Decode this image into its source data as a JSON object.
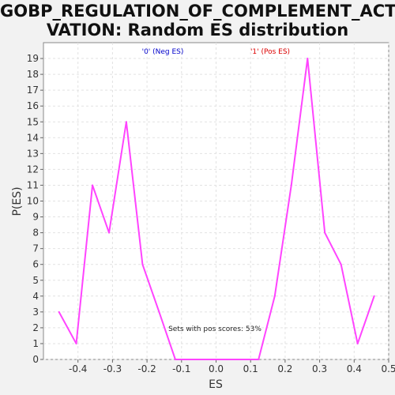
{
  "chart_data": {
    "type": "line",
    "title_line1": "GOBP_REGULATION_OF_COMPLEMENT_ACTI",
    "title_line2": "VATION: Random ES distribution",
    "xlabel": "ES",
    "ylabel": "P(ES)",
    "xlim": [
      -0.5,
      0.5
    ],
    "ylim": [
      0,
      20
    ],
    "xticks": [
      "-0.4",
      "-0.3",
      "-0.2",
      "-0.1",
      "0.0",
      "0.1",
      "0.2",
      "0.3",
      "0.4",
      "0.5"
    ],
    "xtick_values": [
      -0.4,
      -0.3,
      -0.2,
      -0.1,
      0.0,
      0.1,
      0.2,
      0.3,
      0.4,
      0.5
    ],
    "yticks": [
      "0",
      "1",
      "2",
      "3",
      "4",
      "5",
      "6",
      "7",
      "8",
      "9",
      "10",
      "11",
      "12",
      "13",
      "14",
      "15",
      "16",
      "17",
      "18",
      "19"
    ],
    "ytick_values": [
      0,
      1,
      2,
      3,
      4,
      5,
      6,
      7,
      8,
      9,
      10,
      11,
      12,
      13,
      14,
      15,
      16,
      17,
      18,
      19
    ],
    "grid": true,
    "legend": [
      {
        "label": "'0' (Neg ES)",
        "color": "#0000cc"
      },
      {
        "label": "'1' (Pos ES)",
        "color": "#dd0000"
      }
    ],
    "annotation": "Sets with pos scores: 53%",
    "series": [
      {
        "color": "#ff44ff",
        "x": [
          -0.455,
          -0.405,
          -0.358,
          -0.31,
          -0.26,
          -0.213,
          -0.165,
          -0.118,
          -0.07,
          -0.02,
          0.025,
          0.075,
          0.123,
          0.17,
          0.218,
          0.265,
          0.315,
          0.362,
          0.41,
          0.458
        ],
        "y": [
          3,
          1,
          11,
          8,
          15,
          6,
          3,
          0,
          0,
          0,
          0,
          0,
          0,
          4,
          11,
          19,
          8,
          6,
          1,
          4
        ]
      }
    ]
  }
}
